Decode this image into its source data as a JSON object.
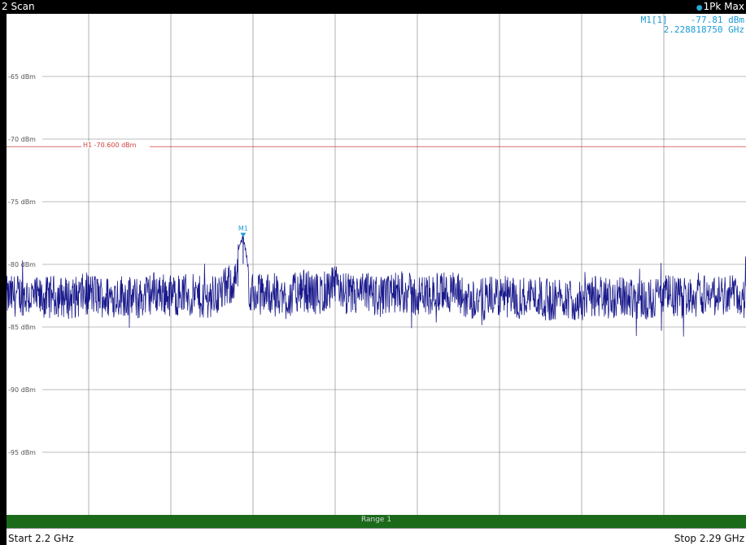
{
  "window": {
    "title": "2 Scan",
    "trace_info": "1Pk Max",
    "trace_color": "#2aa6d6"
  },
  "marker": {
    "id": "M1[1]",
    "level": "-77.81 dBm",
    "frequency": "2.228818750 GHz",
    "label": "M1",
    "x_ghz": 2.2288,
    "y_dbm": -77.81,
    "color": "#1a9ad6"
  },
  "footer": {
    "start": "Start 2.2 GHz",
    "stop": "Stop 2.29 GHz",
    "range": "Range 1",
    "range_color": "#1a6a1a"
  },
  "chart_data": {
    "type": "line",
    "title": "",
    "xlabel": "",
    "ylabel": "",
    "xlim": [
      2.2,
      2.29
    ],
    "ylim": [
      -100,
      -60
    ],
    "y_ticks": [
      -65,
      -70,
      -75,
      -80,
      -85,
      -90,
      -95
    ],
    "y_tick_labels": [
      "-65 dBm",
      "-70 dBm",
      "-75 dBm",
      "-80 dBm",
      "-85 dBm",
      "-90 dBm",
      "-95 dBm"
    ],
    "grid": true,
    "limit_line": {
      "name": "H1",
      "label": "H1 -70.600 dBm",
      "value": -70.6,
      "color": "#d04040"
    },
    "series": [
      {
        "color": "#1a1a8c",
        "x": [
          2.2,
          2.202,
          2.204,
          2.206,
          2.208,
          2.21,
          2.212,
          2.214,
          2.216,
          2.218,
          2.22,
          2.222,
          2.224,
          2.226,
          2.2288,
          2.23,
          2.232,
          2.234,
          2.236,
          2.238,
          2.24,
          2.242,
          2.244,
          2.246,
          2.248,
          2.25,
          2.252,
          2.254,
          2.256,
          2.258,
          2.26,
          2.262,
          2.264,
          2.266,
          2.268,
          2.27,
          2.272,
          2.274,
          2.276,
          2.278,
          2.28,
          2.282,
          2.284,
          2.286,
          2.288,
          2.29
        ],
        "values": [
          -82.6,
          -82.1,
          -83.0,
          -82.4,
          -82.9,
          -81.8,
          -82.7,
          -82.2,
          -83.1,
          -81.5,
          -82.3,
          -82.0,
          -82.8,
          -81.9,
          -77.8,
          -82.4,
          -81.6,
          -82.9,
          -81.2,
          -82.1,
          -80.4,
          -82.5,
          -81.7,
          -82.8,
          -81.3,
          -82.6,
          -82.0,
          -81.4,
          -82.9,
          -83.1,
          -82.4,
          -83.0,
          -82.2,
          -83.3,
          -82.6,
          -83.6,
          -82.3,
          -82.9,
          -82.5,
          -83.2,
          -82.1,
          -82.8,
          -81.6,
          -82.4,
          -81.9,
          -82.7
        ]
      }
    ]
  }
}
